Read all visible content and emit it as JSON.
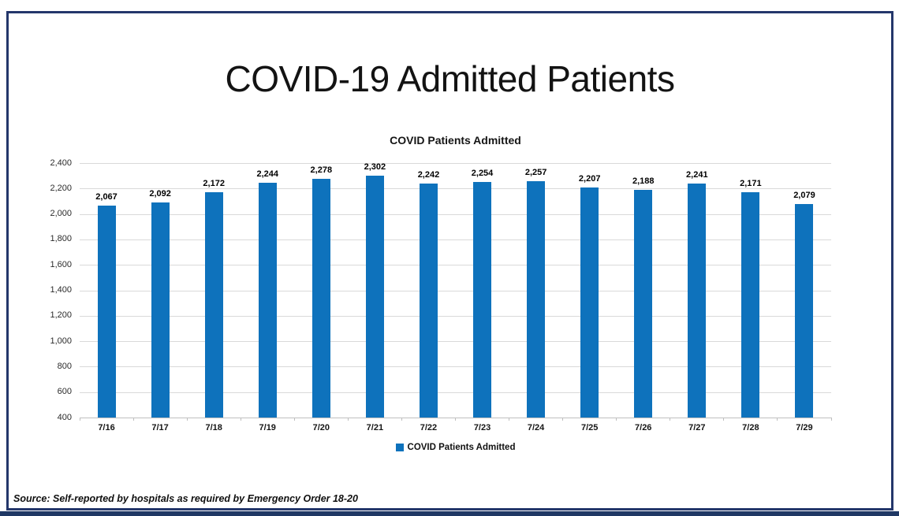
{
  "title": "COVID-19 Admitted Patients",
  "source_note": "Source: Self-reported by hospitals as required by Emergency Order 18-20",
  "colors": {
    "bar": "#0E72BC",
    "gridline": "#D9D9D9",
    "axis_line": "#BFBFBF",
    "frame_border": "#24376B",
    "bottom_strip": "#1F3864"
  },
  "chart_data": {
    "type": "bar",
    "title": "COVID Patients Admitted",
    "categories": [
      "7/16",
      "7/17",
      "7/18",
      "7/19",
      "7/20",
      "7/21",
      "7/22",
      "7/23",
      "7/24",
      "7/25",
      "7/26",
      "7/27",
      "7/28",
      "7/29"
    ],
    "values": [
      2067,
      2092,
      2172,
      2244,
      2278,
      2302,
      2242,
      2254,
      2257,
      2207,
      2188,
      2241,
      2171,
      2079
    ],
    "value_labels": [
      "2,067",
      "2,092",
      "2,172",
      "2,244",
      "2,278",
      "2,302",
      "2,242",
      "2,254",
      "2,257",
      "2,207",
      "2,188",
      "2,241",
      "2,171",
      "2,079"
    ],
    "series_name": "COVID Patients Admitted",
    "legend": {
      "label": "COVID Patients Admitted",
      "position": "bottom"
    },
    "xlabel": "",
    "ylabel": "",
    "ylim": [
      400,
      2400
    ],
    "ytick_step": 200,
    "yticks": [
      "2,400",
      "2,200",
      "2,000",
      "1,800",
      "1,600",
      "1,400",
      "1,200",
      "1,000",
      "800",
      "600",
      "400"
    ],
    "grid": true,
    "legend_color": "#0E72BC"
  }
}
